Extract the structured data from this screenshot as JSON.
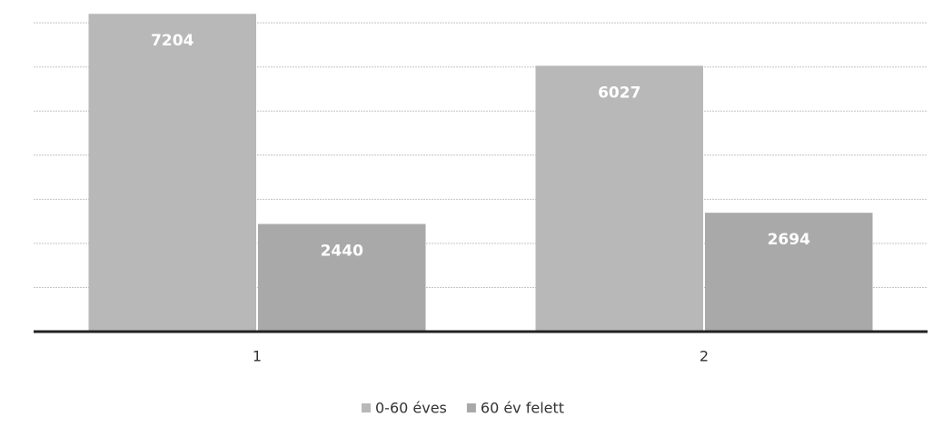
{
  "chart_data": {
    "type": "bar",
    "categories": [
      "1",
      "2"
    ],
    "series": [
      {
        "name": "0-60 éves",
        "color": "#b8b8b8",
        "values": [
          7204,
          6027
        ]
      },
      {
        "name": "60 év felett",
        "color": "#a9a9a9",
        "values": [
          2440,
          2694
        ]
      }
    ],
    "ylim": [
      0,
      7250
    ],
    "yticks": [
      0,
      1000,
      2000,
      3000,
      4000,
      5000,
      6000,
      7000
    ],
    "grid": true,
    "legend": "bottom",
    "data_labels": true
  }
}
